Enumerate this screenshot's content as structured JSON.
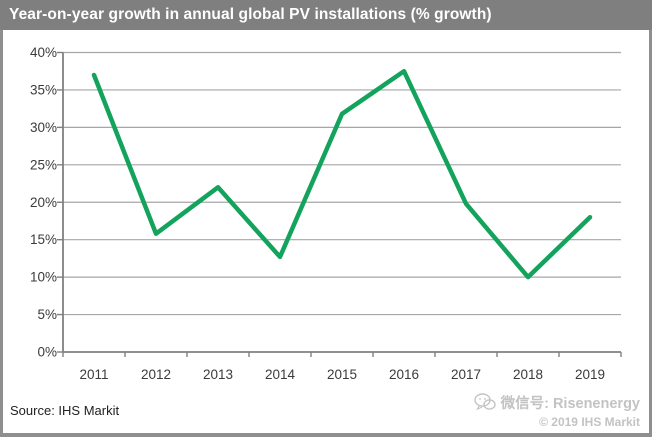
{
  "title": "Year-on-year growth in annual global PV installations (% growth)",
  "source": "Source: IHS Markit",
  "watermark": {
    "wechat_label": "微信号: Risenenergy",
    "copyright": "© 2019 IHS Markit",
    "icon": "wechat-icon"
  },
  "colors": {
    "title_bg": "#7f7f7f",
    "title_text": "#ffffff",
    "line": "#13a35c",
    "grid": "#a6a6a6",
    "axis": "#808080",
    "tick_text": "#3b3b3b",
    "watermark": "#c3c3c3",
    "frame": "#8f8f8f"
  },
  "chart_data": {
    "type": "line",
    "categories": [
      "2011",
      "2012",
      "2013",
      "2014",
      "2015",
      "2016",
      "2017",
      "2018",
      "2019"
    ],
    "series": [
      {
        "name": "Year-on-year growth of annual global PV installations",
        "values": [
          37,
          15.8,
          22,
          12.7,
          31.8,
          37.5,
          19.8,
          10,
          18
        ]
      }
    ],
    "title": "Year-on-year growth in annual global PV installations (% growth)",
    "xlabel": "",
    "ylabel": "",
    "ylim": [
      0,
      40
    ],
    "ytick_step": 5,
    "ytick_suffix": "%",
    "grid": true,
    "legend_position": "none"
  }
}
